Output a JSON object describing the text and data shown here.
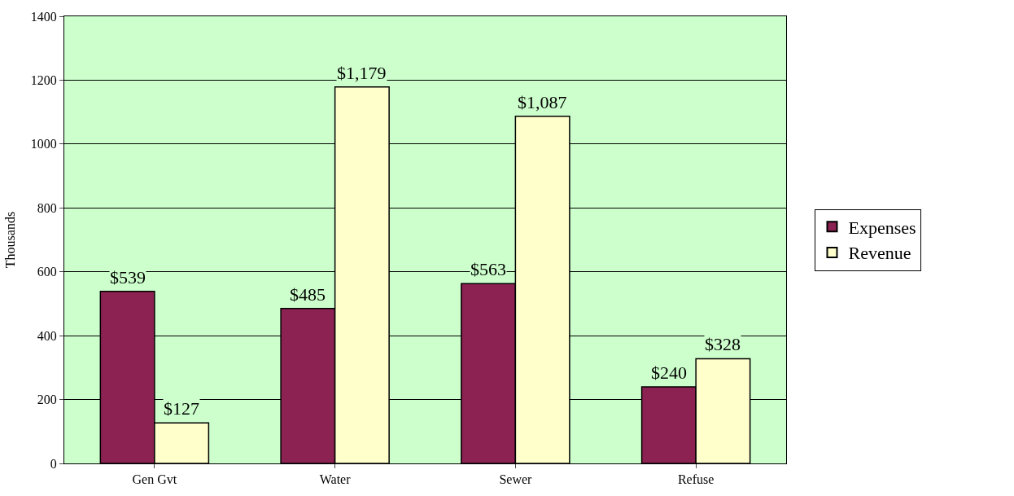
{
  "chart_data": {
    "type": "bar",
    "ylabel": "Thousands",
    "categories": [
      "Gen Gvt",
      "Water",
      "Sewer",
      "Refuse"
    ],
    "series": [
      {
        "name": "Expenses",
        "color": "#8b2252",
        "values": [
          539,
          485,
          563,
          240
        ],
        "value_labels": [
          "$539",
          "$485",
          "$563",
          "$240"
        ]
      },
      {
        "name": "Revenue",
        "color": "#ffffcc",
        "values": [
          127,
          1179,
          1087,
          328
        ],
        "value_labels": [
          "$127",
          "$1,179",
          "$1,087",
          "$328"
        ]
      }
    ],
    "ylim": [
      0,
      1400
    ],
    "yticks": [
      0,
      200,
      400,
      600,
      800,
      1000,
      1200,
      1400
    ],
    "grid": "y",
    "legend": "right"
  }
}
